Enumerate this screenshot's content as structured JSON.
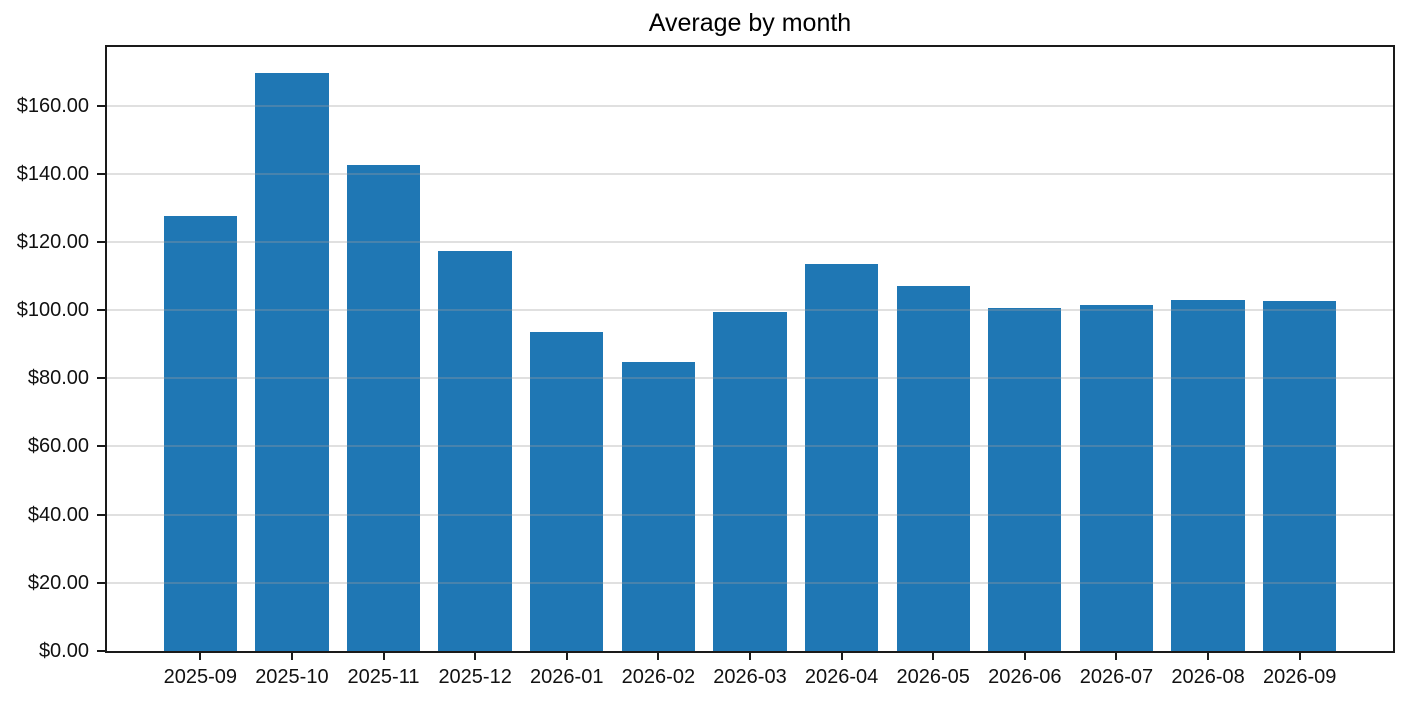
{
  "chart_data": {
    "type": "bar",
    "title": "Average by month",
    "categories": [
      "2025-09",
      "2025-10",
      "2025-11",
      "2025-12",
      "2026-01",
      "2026-02",
      "2026-03",
      "2026-04",
      "2026-05",
      "2026-06",
      "2026-07",
      "2026-08",
      "2026-09"
    ],
    "values": [
      127.5,
      169.5,
      142.7,
      117.3,
      93.5,
      84.7,
      99.4,
      113.5,
      107.0,
      100.7,
      101.4,
      103.0,
      102.8
    ],
    "xlabel": "",
    "ylabel": "",
    "y_tick_values": [
      0,
      20,
      40,
      60,
      80,
      100,
      120,
      140,
      160
    ],
    "y_tick_labels": [
      "$0.00",
      "$20.00",
      "$40.00",
      "$60.00",
      "$80.00",
      "$100.00",
      "$120.00",
      "$140.00",
      "$160.00"
    ],
    "ylim": [
      0,
      177.2
    ],
    "grid": true,
    "grid_over_bars": true,
    "legend": null,
    "bar_width_fraction": 0.8,
    "bar_color": "#1f77b4",
    "grid_color": "#e4e4e4",
    "axis_color": "#1a1a1a",
    "text_color": "#111111",
    "background_color": "#ffffff"
  }
}
